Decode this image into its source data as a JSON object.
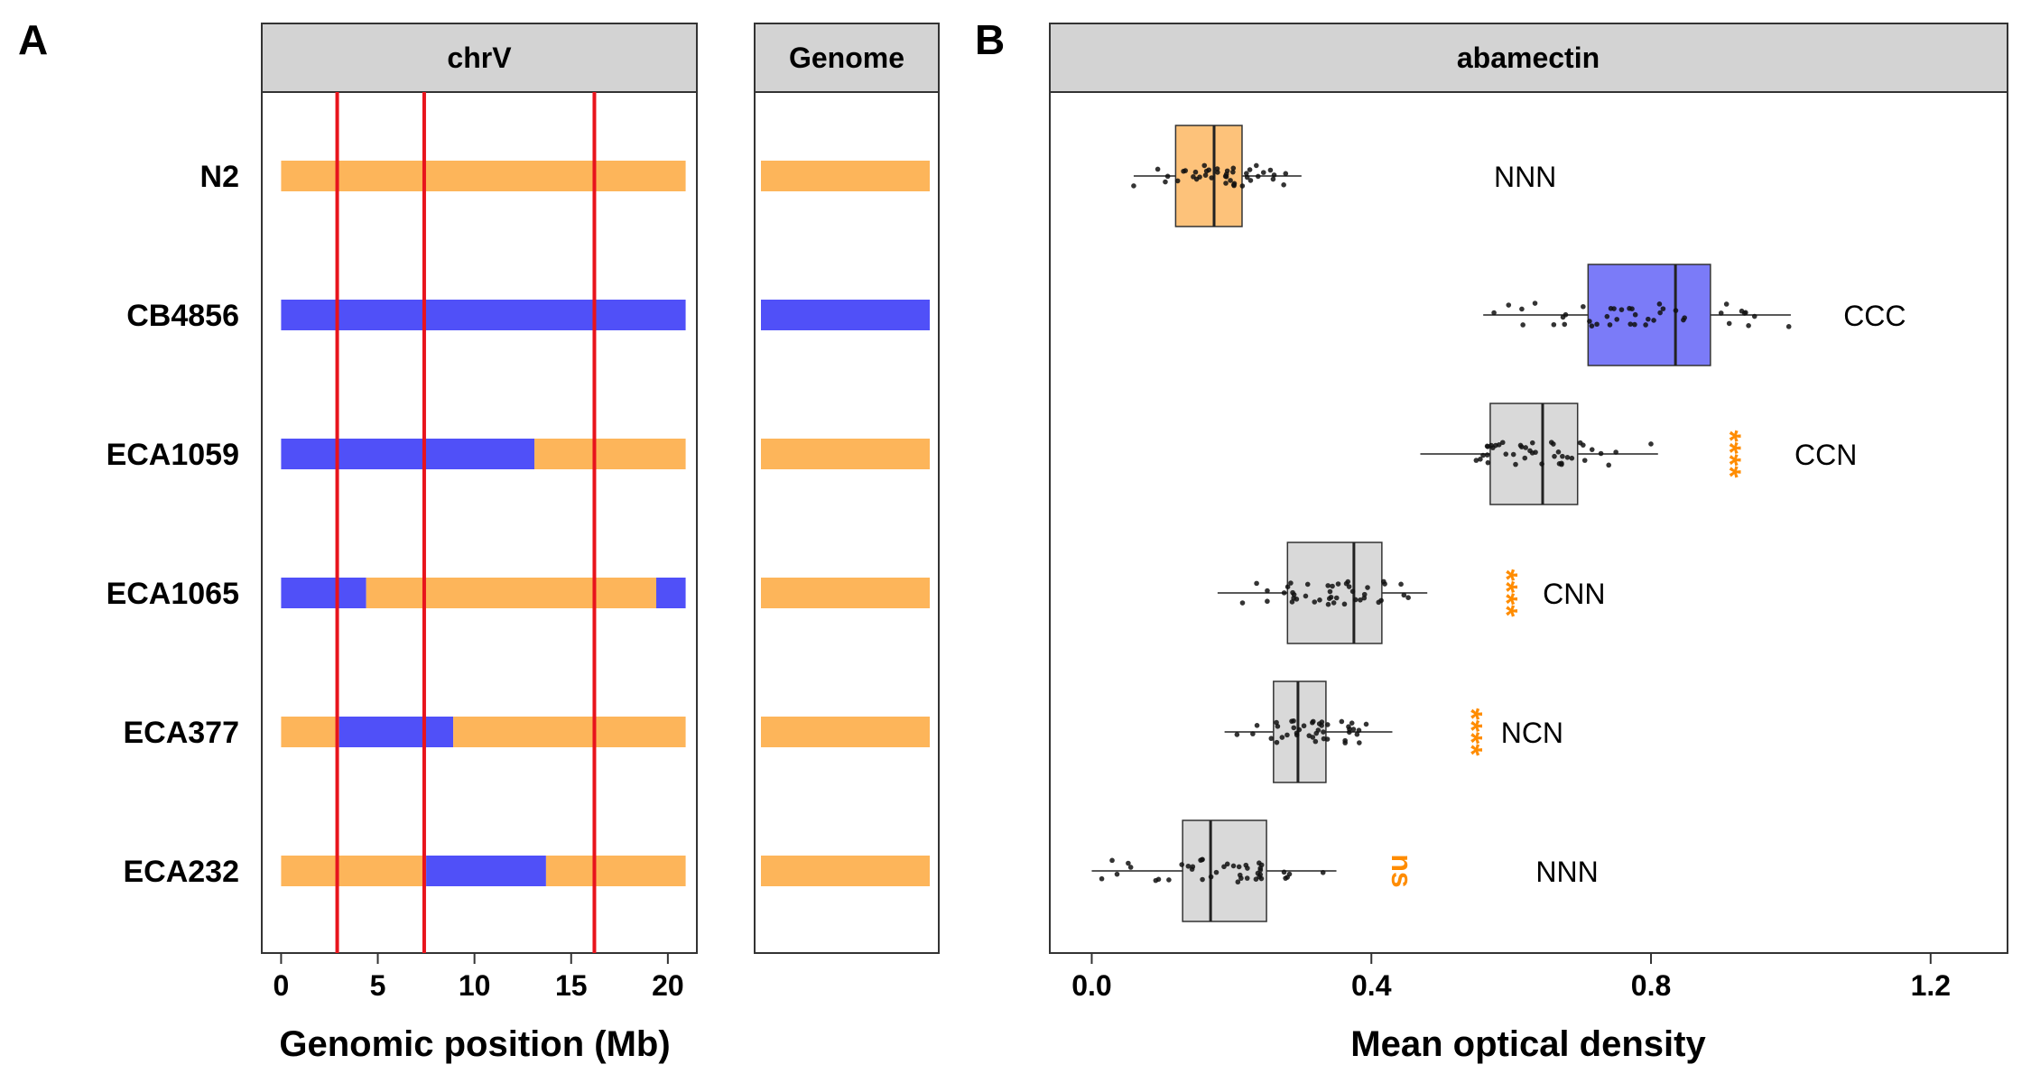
{
  "panel_labels": {
    "a": "A",
    "b": "B"
  },
  "chart_data": [
    {
      "type": "genotype_bar",
      "panel": "A",
      "facets": [
        "chrV",
        "Genome"
      ],
      "xlabel": "Genomic position (Mb)",
      "xlim": [
        -1,
        21.5
      ],
      "xticks": [
        0,
        5,
        10,
        15,
        20
      ],
      "chrom_length": 20.92,
      "colors": {
        "N2": "#FDB55A",
        "CB4856": "#5050F8",
        "qtl_line": "#E8141C",
        "strip": "#D3D3D3"
      },
      "qtl_positions": [
        2.9,
        7.4,
        16.2
      ],
      "strains": [
        {
          "name": "N2",
          "segments": [
            [
              0,
              20.92,
              "N2"
            ]
          ],
          "genome": "N2"
        },
        {
          "name": "CB4856",
          "segments": [
            [
              0,
              20.92,
              "CB4856"
            ]
          ],
          "genome": "CB4856"
        },
        {
          "name": "ECA1059",
          "segments": [
            [
              0,
              13.1,
              "CB4856"
            ],
            [
              13.1,
              20.92,
              "N2"
            ]
          ],
          "genome": "N2"
        },
        {
          "name": "ECA1065",
          "segments": [
            [
              0,
              4.4,
              "CB4856"
            ],
            [
              4.4,
              19.4,
              "N2"
            ],
            [
              19.4,
              20.92,
              "CB4856"
            ]
          ],
          "genome": "N2"
        },
        {
          "name": "ECA377",
          "segments": [
            [
              0,
              3.0,
              "N2"
            ],
            [
              3.0,
              8.9,
              "CB4856"
            ],
            [
              8.9,
              20.92,
              "N2"
            ]
          ],
          "genome": "N2"
        },
        {
          "name": "ECA232",
          "segments": [
            [
              0,
              7.5,
              "N2"
            ],
            [
              7.5,
              13.7,
              "CB4856"
            ],
            [
              13.7,
              20.92,
              "N2"
            ]
          ],
          "genome": "N2"
        }
      ]
    },
    {
      "type": "boxplot",
      "panel": "B",
      "title": "abamectin",
      "xlabel": "Mean optical density",
      "xlim": [
        -0.06,
        1.31
      ],
      "xticks": [
        0.0,
        0.4,
        0.8,
        1.2
      ],
      "xtick_labels": [
        "0.0",
        "0.4",
        "0.8",
        "1.2"
      ],
      "series": [
        {
          "strain": "N2",
          "fill": "#FDC27A",
          "min": 0.06,
          "q1": 0.12,
          "median": 0.175,
          "q3": 0.215,
          "max": 0.3,
          "genotype": "NNN",
          "significance": ""
        },
        {
          "strain": "CB4856",
          "fill": "#7B7BF8",
          "min": 0.56,
          "q1": 0.71,
          "median": 0.835,
          "q3": 0.885,
          "max": 1.0,
          "genotype": "CCC",
          "significance": ""
        },
        {
          "strain": "ECA1059",
          "fill": "#D9D9D9",
          "min": 0.47,
          "q1": 0.57,
          "median": 0.645,
          "q3": 0.695,
          "max": 0.81,
          "genotype": "CCN",
          "significance": "****"
        },
        {
          "strain": "ECA1065",
          "fill": "#D9D9D9",
          "min": 0.18,
          "q1": 0.28,
          "median": 0.375,
          "q3": 0.415,
          "max": 0.48,
          "genotype": "CNN",
          "significance": "****"
        },
        {
          "strain": "ECA377",
          "fill": "#D9D9D9",
          "min": 0.19,
          "q1": 0.26,
          "median": 0.295,
          "q3": 0.335,
          "max": 0.43,
          "genotype": "NCN",
          "significance": "****"
        },
        {
          "strain": "ECA232",
          "fill": "#D9D9D9",
          "min": 0.0,
          "q1": 0.13,
          "median": 0.17,
          "q3": 0.25,
          "max": 0.35,
          "genotype": "NNN",
          "significance": "ns"
        }
      ],
      "significance_color": "#FF8C00"
    }
  ]
}
